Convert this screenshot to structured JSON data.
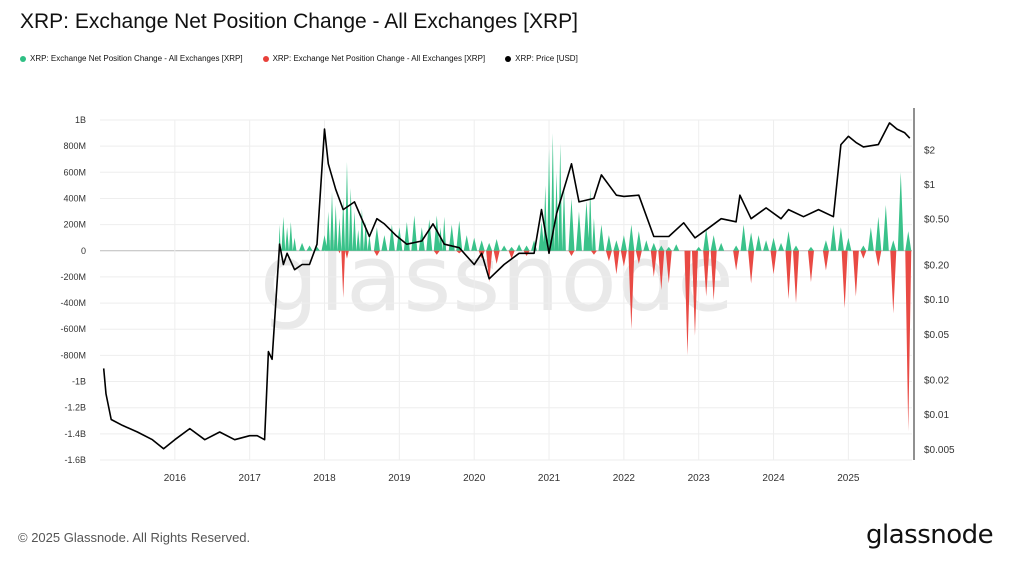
{
  "title": "XRP: Exchange Net Position Change - All Exchanges [XRP]",
  "footer": "© 2025 Glassnode. All Rights Reserved.",
  "watermark": "glassnode",
  "brand": "glassnode",
  "legend": [
    {
      "label": "XRP: Exchange Net Position Change - All Exchanges [XRP]",
      "color": "#2fbf84"
    },
    {
      "label": "XRP: Exchange Net Position Change - All Exchanges [XRP]",
      "color": "#e8403a"
    },
    {
      "label": "XRP: Price [USD]",
      "color": "#000000"
    }
  ],
  "chart_data": {
    "type": "area",
    "title": "XRP: Exchange Net Position Change - All Exchanges [XRP]",
    "x_ticks": [
      "2016",
      "2017",
      "2018",
      "2019",
      "2020",
      "2021",
      "2022",
      "2023",
      "2024",
      "2025"
    ],
    "y_left_ticks": [
      "1B",
      "800M",
      "600M",
      "400M",
      "200M",
      "0",
      "-200M",
      "-400M",
      "-600M",
      "-800M",
      "-1B",
      "-1.2B",
      "-1.4B",
      "-1.6B"
    ],
    "y_left_range": [
      -1600000000,
      1000000000
    ],
    "y_right_ticks": [
      "$2",
      "$1",
      "$0.50",
      "$0.20",
      "$0.10",
      "$0.05",
      "$0.02",
      "$0.01",
      "$0.005"
    ],
    "y_right_scale": "log",
    "grid": true,
    "legend_position": "top-left",
    "series": [
      {
        "name": "XRP: Exchange Net Position Change - All Exchanges [XRP]",
        "color": "#2fbf84",
        "unit": "XRP",
        "points": [
          [
            "2017.38",
            0
          ],
          [
            "2017.40",
            200000000
          ],
          [
            "2017.45",
            260000000
          ],
          [
            "2017.50",
            180000000
          ],
          [
            "2017.55",
            220000000
          ],
          [
            "2017.60",
            100000000
          ],
          [
            "2017.70",
            60000000
          ],
          [
            "2017.80",
            40000000
          ],
          [
            "2017.90",
            30000000
          ],
          [
            "2018.00",
            120000000
          ],
          [
            "2018.05",
            300000000
          ],
          [
            "2018.10",
            450000000
          ],
          [
            "2018.15",
            350000000
          ],
          [
            "2018.20",
            250000000
          ],
          [
            "2018.25",
            400000000
          ],
          [
            "2018.30",
            680000000
          ],
          [
            "2018.35",
            480000000
          ],
          [
            "2018.40",
            300000000
          ],
          [
            "2018.45",
            160000000
          ],
          [
            "2018.50",
            320000000
          ],
          [
            "2018.55",
            220000000
          ],
          [
            "2018.60",
            120000000
          ],
          [
            "2018.70",
            180000000
          ],
          [
            "2018.80",
            120000000
          ],
          [
            "2018.90",
            200000000
          ],
          [
            "2019.00",
            180000000
          ],
          [
            "2019.10",
            220000000
          ],
          [
            "2019.20",
            270000000
          ],
          [
            "2019.30",
            180000000
          ],
          [
            "2019.40",
            240000000
          ],
          [
            "2019.50",
            270000000
          ],
          [
            "2019.55",
            180000000
          ],
          [
            "2019.60",
            260000000
          ],
          [
            "2019.70",
            200000000
          ],
          [
            "2019.80",
            230000000
          ],
          [
            "2019.90",
            120000000
          ],
          [
            "2020.00",
            100000000
          ],
          [
            "2020.10",
            80000000
          ],
          [
            "2020.20",
            60000000
          ],
          [
            "2020.30",
            90000000
          ],
          [
            "2020.40",
            40000000
          ],
          [
            "2020.50",
            30000000
          ],
          [
            "2020.60",
            50000000
          ],
          [
            "2020.70",
            40000000
          ],
          [
            "2020.80",
            80000000
          ],
          [
            "2020.90",
            220000000
          ],
          [
            "2020.95",
            500000000
          ],
          [
            "2021.00",
            780000000
          ],
          [
            "2021.05",
            900000000
          ],
          [
            "2021.10",
            600000000
          ],
          [
            "2021.15",
            820000000
          ],
          [
            "2021.20",
            500000000
          ],
          [
            "2021.30",
            400000000
          ],
          [
            "2021.40",
            300000000
          ],
          [
            "2021.50",
            380000000
          ],
          [
            "2021.55",
            480000000
          ],
          [
            "2021.60",
            250000000
          ],
          [
            "2021.70",
            200000000
          ],
          [
            "2021.80",
            120000000
          ],
          [
            "2021.90",
            80000000
          ],
          [
            "2022.00",
            120000000
          ],
          [
            "2022.10",
            200000000
          ],
          [
            "2022.20",
            150000000
          ],
          [
            "2022.30",
            80000000
          ],
          [
            "2022.40",
            60000000
          ],
          [
            "2022.50",
            40000000
          ],
          [
            "2022.60",
            30000000
          ],
          [
            "2022.70",
            50000000
          ],
          [
            "2023.00",
            30000000
          ],
          [
            "2023.10",
            170000000
          ],
          [
            "2023.20",
            120000000
          ],
          [
            "2023.30",
            60000000
          ],
          [
            "2023.50",
            40000000
          ],
          [
            "2023.60",
            200000000
          ],
          [
            "2023.70",
            140000000
          ],
          [
            "2023.80",
            120000000
          ],
          [
            "2023.90",
            80000000
          ],
          [
            "2024.00",
            100000000
          ],
          [
            "2024.10",
            60000000
          ],
          [
            "2024.20",
            150000000
          ],
          [
            "2024.30",
            40000000
          ],
          [
            "2024.50",
            30000000
          ],
          [
            "2024.70",
            80000000
          ],
          [
            "2024.80",
            200000000
          ],
          [
            "2024.90",
            180000000
          ],
          [
            "2025.00",
            100000000
          ],
          [
            "2025.20",
            40000000
          ],
          [
            "2025.30",
            180000000
          ],
          [
            "2025.40",
            260000000
          ],
          [
            "2025.50",
            350000000
          ],
          [
            "2025.60",
            80000000
          ],
          [
            "2025.70",
            600000000
          ],
          [
            "2025.80",
            150000000
          ]
        ]
      },
      {
        "name": "XRP: Exchange Net Position Change - All Exchanges [XRP]",
        "color": "#e8403a",
        "unit": "XRP",
        "points": [
          [
            "2018.20",
            -20000000
          ],
          [
            "2018.25",
            -360000000
          ],
          [
            "2018.30",
            -60000000
          ],
          [
            "2018.70",
            -40000000
          ],
          [
            "2019.50",
            -30000000
          ],
          [
            "2019.80",
            -20000000
          ],
          [
            "2020.10",
            -60000000
          ],
          [
            "2020.20",
            -240000000
          ],
          [
            "2020.30",
            -100000000
          ],
          [
            "2020.50",
            -60000000
          ],
          [
            "2020.70",
            -40000000
          ],
          [
            "2021.30",
            -40000000
          ],
          [
            "2021.60",
            -30000000
          ],
          [
            "2021.80",
            -80000000
          ],
          [
            "2021.90",
            -180000000
          ],
          [
            "2022.00",
            -120000000
          ],
          [
            "2022.10",
            -600000000
          ],
          [
            "2022.20",
            -100000000
          ],
          [
            "2022.40",
            -200000000
          ],
          [
            "2022.50",
            -300000000
          ],
          [
            "2022.60",
            -250000000
          ],
          [
            "2022.85",
            -800000000
          ],
          [
            "2022.95",
            -650000000
          ],
          [
            "2023.10",
            -350000000
          ],
          [
            "2023.20",
            -380000000
          ],
          [
            "2023.50",
            -150000000
          ],
          [
            "2023.70",
            -250000000
          ],
          [
            "2024.00",
            -180000000
          ],
          [
            "2024.20",
            -370000000
          ],
          [
            "2024.30",
            -400000000
          ],
          [
            "2024.50",
            -240000000
          ],
          [
            "2024.70",
            -150000000
          ],
          [
            "2024.95",
            -440000000
          ],
          [
            "2025.10",
            -350000000
          ],
          [
            "2025.20",
            -60000000
          ],
          [
            "2025.40",
            -120000000
          ],
          [
            "2025.60",
            -480000000
          ],
          [
            "2025.80",
            -1380000000
          ]
        ]
      },
      {
        "name": "XRP: Price [USD]",
        "color": "#000000",
        "unit": "USD",
        "points": [
          [
            "2015.05",
            0.025
          ],
          [
            "2015.08",
            0.015
          ],
          [
            "2015.15",
            0.009
          ],
          [
            "2015.30",
            0.008
          ],
          [
            "2015.50",
            0.007
          ],
          [
            "2015.70",
            0.006
          ],
          [
            "2015.85",
            0.005
          ],
          [
            "2016.00",
            0.006
          ],
          [
            "2016.20",
            0.0075
          ],
          [
            "2016.40",
            0.006
          ],
          [
            "2016.60",
            0.007
          ],
          [
            "2016.80",
            0.006
          ],
          [
            "2017.00",
            0.0065
          ],
          [
            "2017.10",
            0.0065
          ],
          [
            "2017.20",
            0.006
          ],
          [
            "2017.25",
            0.035
          ],
          [
            "2017.30",
            0.03
          ],
          [
            "2017.40",
            0.3
          ],
          [
            "2017.45",
            0.2
          ],
          [
            "2017.50",
            0.25
          ],
          [
            "2017.60",
            0.18
          ],
          [
            "2017.70",
            0.2
          ],
          [
            "2017.80",
            0.2
          ],
          [
            "2017.90",
            0.3
          ],
          [
            "2018.00",
            3.0
          ],
          [
            "2018.05",
            1.5
          ],
          [
            "2018.15",
            0.9
          ],
          [
            "2018.25",
            0.6
          ],
          [
            "2018.40",
            0.7
          ],
          [
            "2018.60",
            0.35
          ],
          [
            "2018.70",
            0.5
          ],
          [
            "2018.80",
            0.45
          ],
          [
            "2018.95",
            0.36
          ],
          [
            "2019.10",
            0.3
          ],
          [
            "2019.30",
            0.32
          ],
          [
            "2019.45",
            0.45
          ],
          [
            "2019.60",
            0.3
          ],
          [
            "2019.80",
            0.28
          ],
          [
            "2020.00",
            0.2
          ],
          [
            "2020.10",
            0.25
          ],
          [
            "2020.20",
            0.15
          ],
          [
            "2020.40",
            0.2
          ],
          [
            "2020.60",
            0.25
          ],
          [
            "2020.80",
            0.25
          ],
          [
            "2020.90",
            0.6
          ],
          [
            "2021.00",
            0.25
          ],
          [
            "2021.10",
            0.55
          ],
          [
            "2021.30",
            1.5
          ],
          [
            "2021.40",
            0.7
          ],
          [
            "2021.60",
            0.75
          ],
          [
            "2021.70",
            1.2
          ],
          [
            "2021.90",
            0.8
          ],
          [
            "2022.00",
            0.78
          ],
          [
            "2022.20",
            0.8
          ],
          [
            "2022.40",
            0.35
          ],
          [
            "2022.60",
            0.35
          ],
          [
            "2022.80",
            0.46
          ],
          [
            "2022.95",
            0.34
          ],
          [
            "2023.10",
            0.4
          ],
          [
            "2023.30",
            0.5
          ],
          [
            "2023.50",
            0.47
          ],
          [
            "2023.55",
            0.8
          ],
          [
            "2023.70",
            0.5
          ],
          [
            "2023.90",
            0.62
          ],
          [
            "2024.10",
            0.5
          ],
          [
            "2024.20",
            0.6
          ],
          [
            "2024.40",
            0.52
          ],
          [
            "2024.60",
            0.6
          ],
          [
            "2024.80",
            0.52
          ],
          [
            "2024.90",
            2.2
          ],
          [
            "2025.00",
            2.6
          ],
          [
            "2025.10",
            2.3
          ],
          [
            "2025.20",
            2.1
          ],
          [
            "2025.40",
            2.2
          ],
          [
            "2025.55",
            3.4
          ],
          [
            "2025.65",
            3.0
          ],
          [
            "2025.75",
            2.8
          ],
          [
            "2025.82",
            2.5
          ]
        ]
      }
    ]
  }
}
